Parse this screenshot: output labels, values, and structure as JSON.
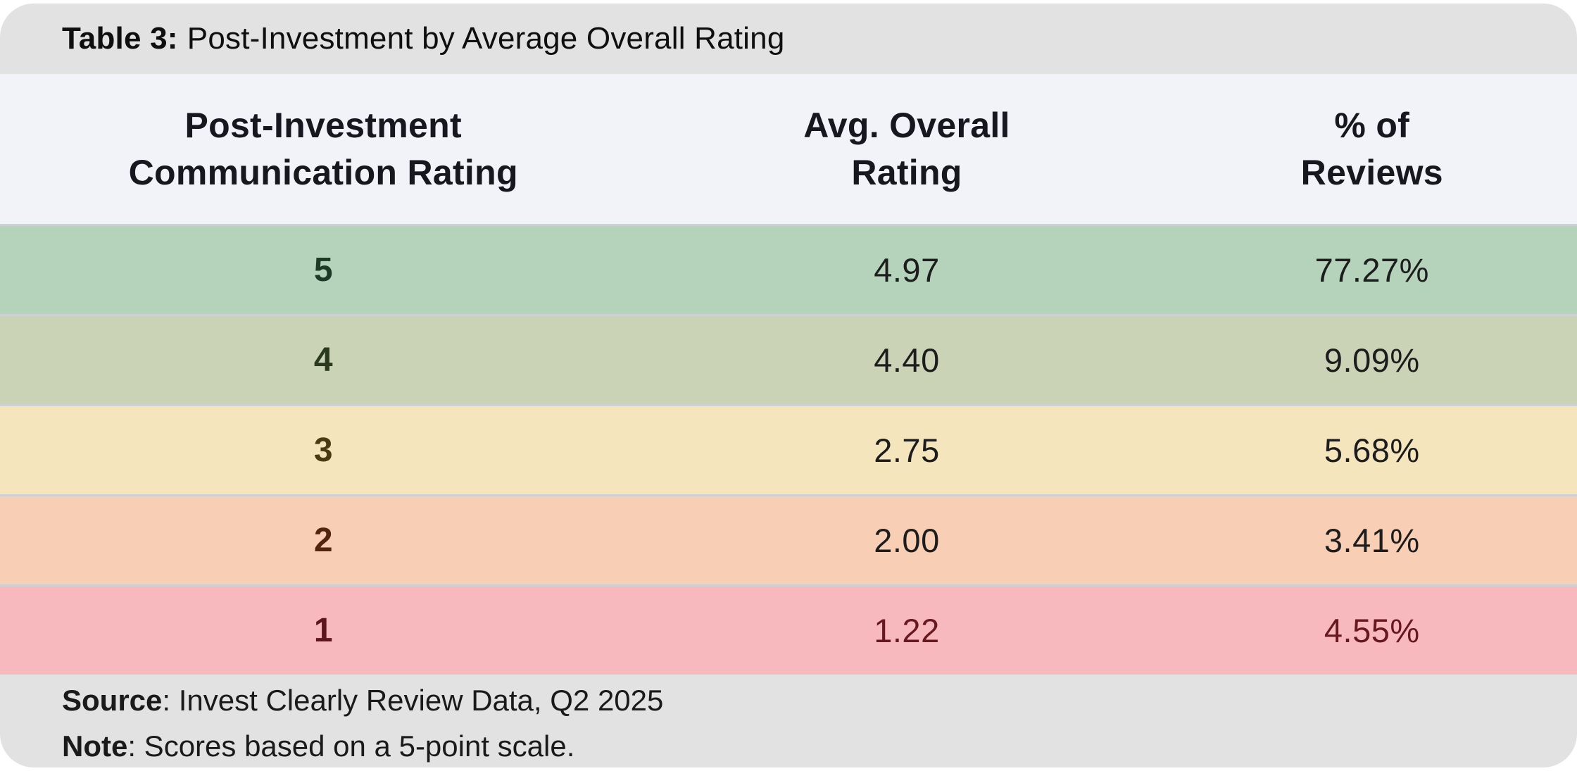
{
  "caption": {
    "label": "Table 3:",
    "text": "Post-Investment by Average Overall Rating"
  },
  "header": {
    "columns": [
      {
        "line1": "Post-Investment",
        "line2": "Communication Rating"
      },
      {
        "line1": "Avg. Overall",
        "line2": "Rating"
      },
      {
        "line1": "% of",
        "line2": "Reviews"
      }
    ]
  },
  "table": {
    "rows": [
      {
        "rating": "5",
        "avg": "4.97",
        "pct": "77.27%",
        "bg": "#b4d3ba",
        "rating_color": "#1e3a26",
        "value_color": "#1d1d1d"
      },
      {
        "rating": "4",
        "avg": "4.40",
        "pct": "9.09%",
        "bg": "#cbd3b6",
        "rating_color": "#2a3a1f",
        "value_color": "#1d1d1d"
      },
      {
        "rating": "3",
        "avg": "2.75",
        "pct": "5.68%",
        "bg": "#f5e5bd",
        "rating_color": "#4a3b10",
        "value_color": "#1d1d1d"
      },
      {
        "rating": "2",
        "avg": "2.00",
        "pct": "3.41%",
        "bg": "#f8cfb5",
        "rating_color": "#53250f",
        "value_color": "#1d1d1d"
      },
      {
        "rating": "1",
        "avg": "1.22",
        "pct": "4.55%",
        "bg": "#f8b9be",
        "rating_color": "#5c161c",
        "value_color": "#67191f"
      }
    ]
  },
  "footer": {
    "source_label": "Source",
    "source_text": ": Invest Clearly Review Data, Q2 2025",
    "note_label": "Note",
    "note_text": ": Scores based on a 5-point scale."
  },
  "theme": {
    "caption_band_bg": "#e2e2e2",
    "header_band_bg": "#f2f3f8",
    "footer_band_bg": "#e2e2e2",
    "row_divider": "#ccd0d7"
  },
  "chart_data": {
    "type": "table",
    "title": "Table 3: Post-Investment by Average Overall Rating",
    "columns": [
      "Post-Investment Communication Rating",
      "Avg. Overall Rating",
      "% of Reviews"
    ],
    "rows": [
      [
        "5",
        "4.97",
        "77.27%"
      ],
      [
        "4",
        "4.40",
        "9.09%"
      ],
      [
        "3",
        "2.75",
        "5.68%"
      ],
      [
        "2",
        "2.00",
        "3.41%"
      ],
      [
        "1",
        "1.22",
        "4.55%"
      ]
    ],
    "row_colors": [
      "#b4d3ba",
      "#cbd3b6",
      "#f5e5bd",
      "#f8cfb5",
      "#f8b9be"
    ],
    "source": "Invest Clearly Review Data, Q2 2025",
    "note": "Scores based on a 5-point scale."
  }
}
